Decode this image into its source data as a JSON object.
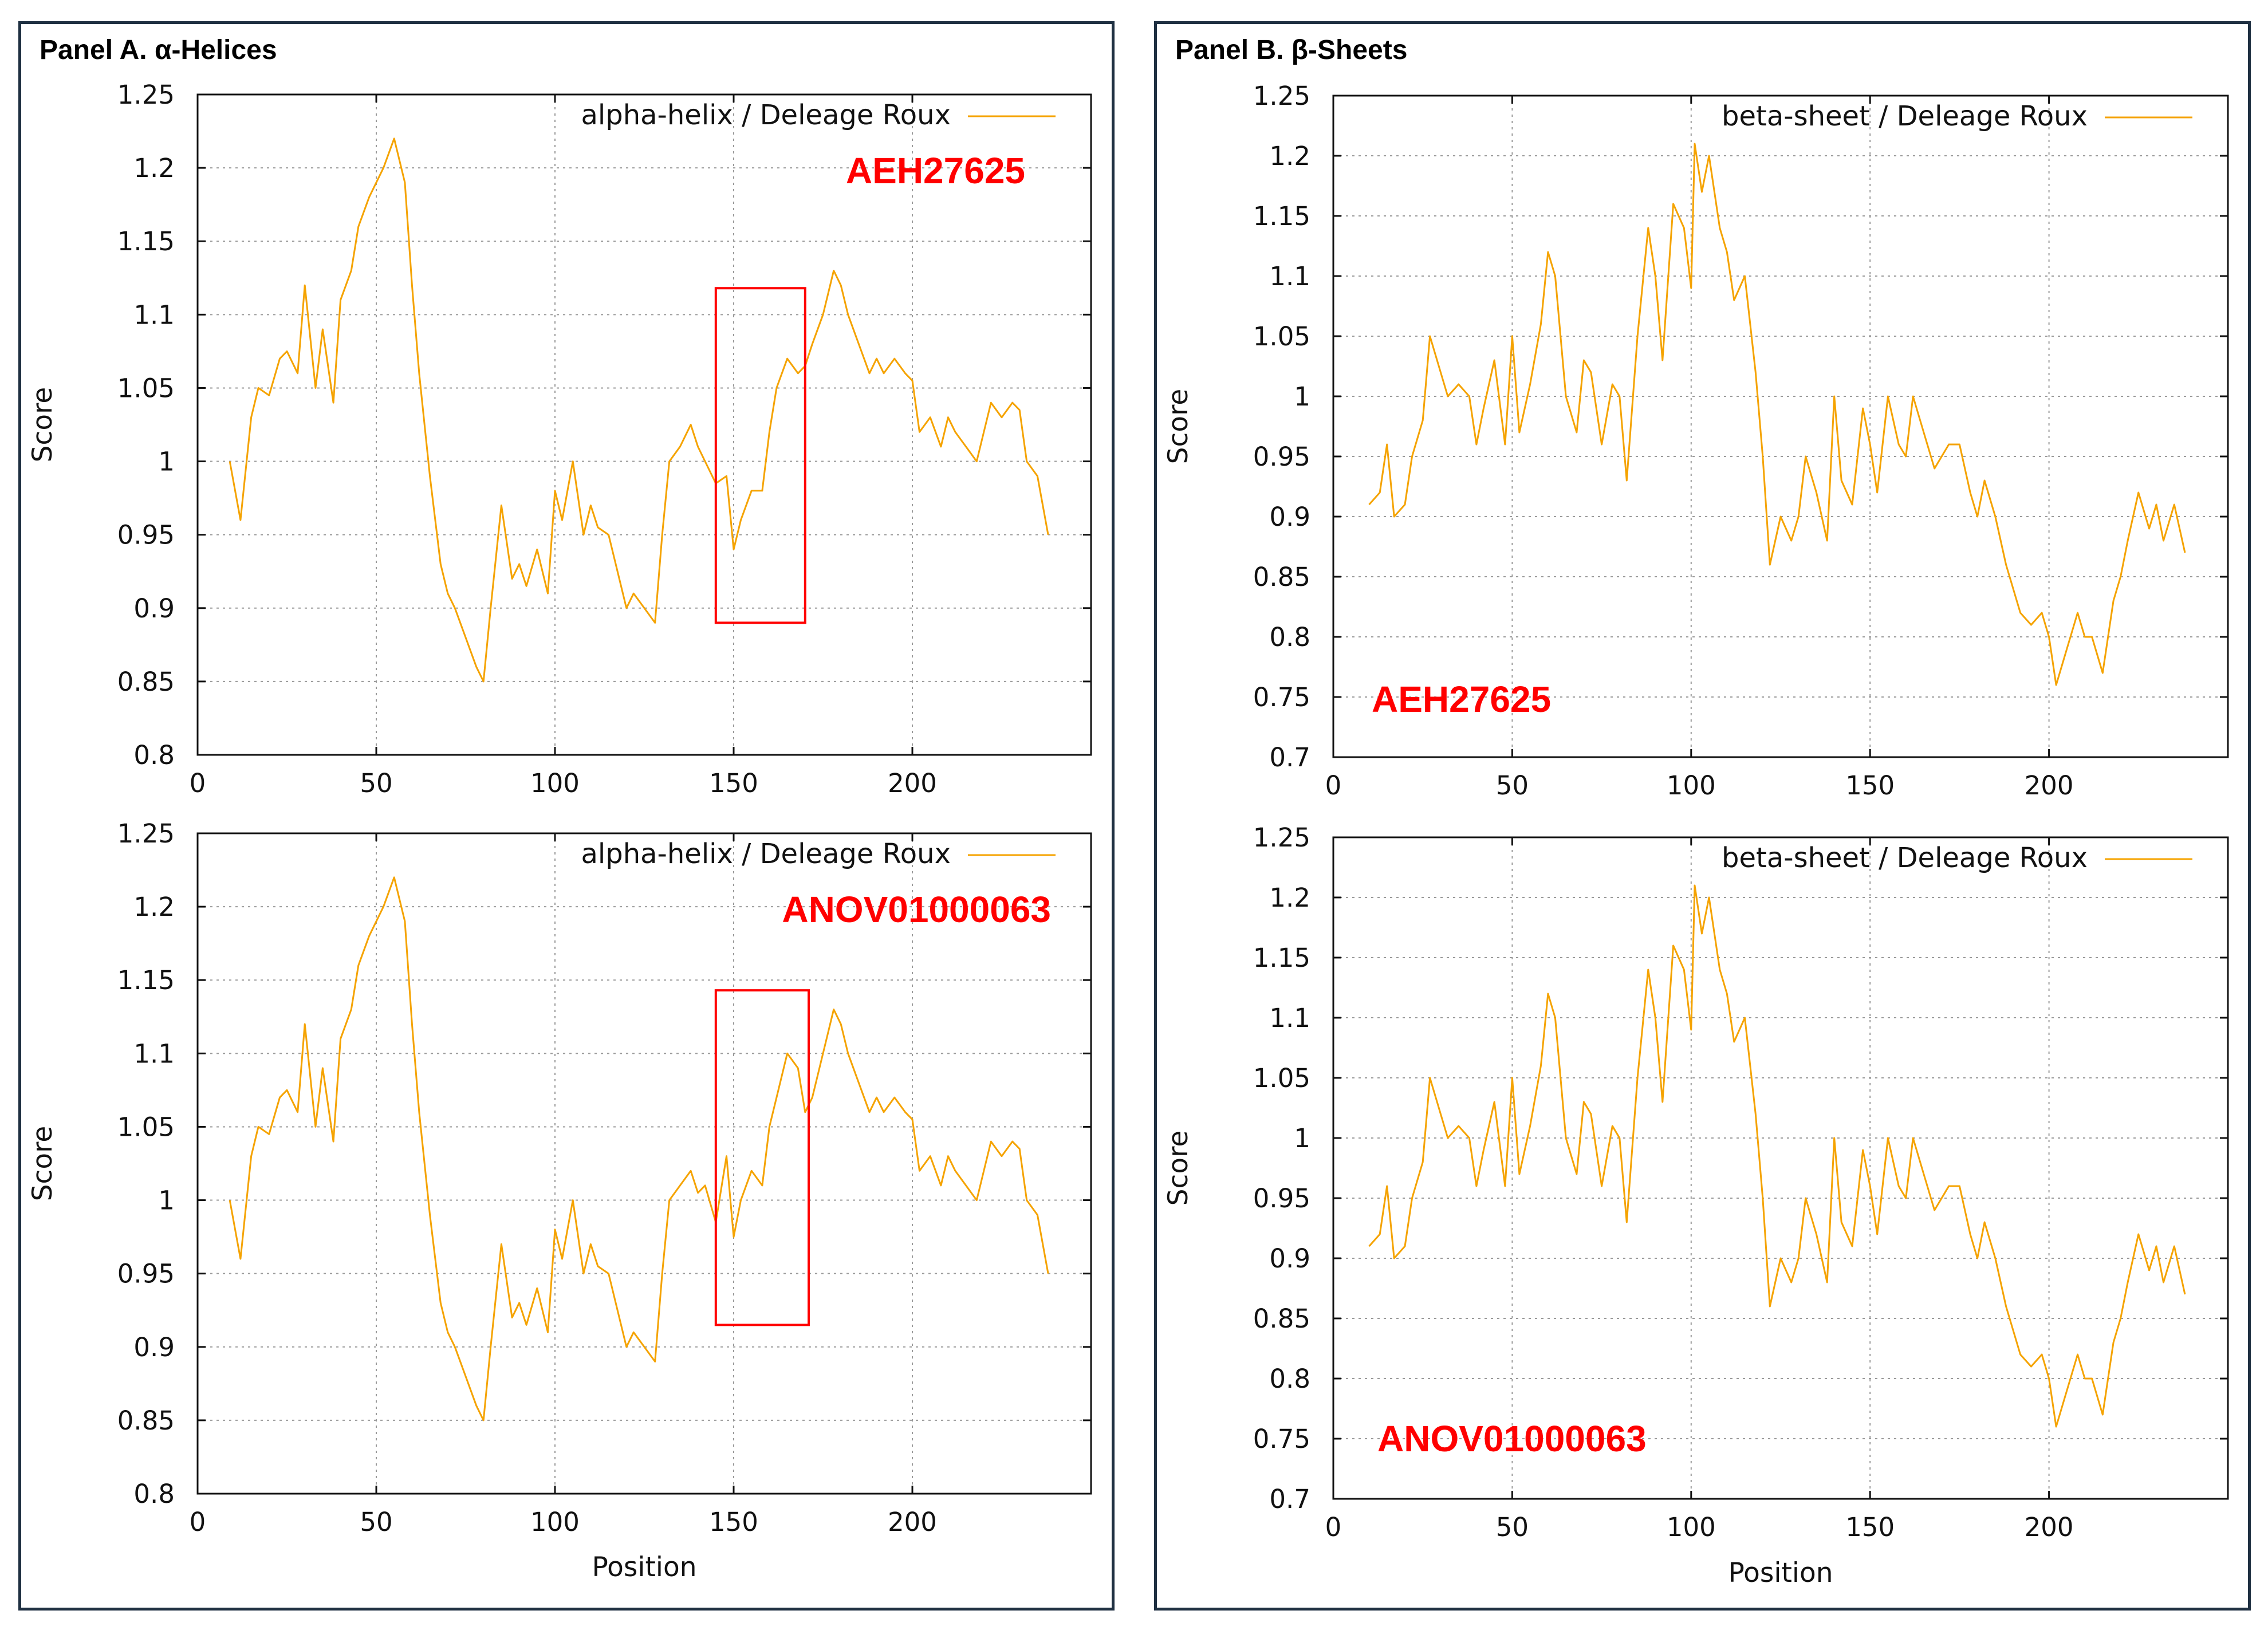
{
  "accent_color": "#ff0000",
  "line_color": "#f5a300",
  "panels": [
    {
      "title": "Panel A. α-Helices"
    },
    {
      "title": "Panel B. β-Sheets"
    }
  ],
  "chart_data": [
    {
      "type": "line",
      "panel": "A",
      "title": "",
      "xlabel": "",
      "ylabel": "Score",
      "xlim": [
        0,
        250
      ],
      "ylim": [
        0.8,
        1.25
      ],
      "xticks": [
        "0",
        "50",
        "100",
        "150",
        "200"
      ],
      "yticks": [
        "0.8",
        "0.85",
        "0.9",
        "0.95",
        "1",
        "1.05",
        "1.1",
        "1.15",
        "1.2",
        "1.25"
      ],
      "legend": "alpha-helix / Deleage  Roux",
      "legend_position": "top-right",
      "annotation": "AEH27625",
      "grid": true,
      "highlight_box": {
        "x": [
          145,
          170
        ],
        "y": [
          0.89,
          1.118
        ]
      },
      "series": [
        {
          "name": "alpha-helix / Deleage  Roux",
          "x": [
            9,
            12,
            15,
            17,
            20,
            23,
            25,
            28,
            30,
            33,
            35,
            38,
            40,
            43,
            45,
            48,
            50,
            52,
            55,
            58,
            60,
            62,
            65,
            68,
            70,
            72,
            75,
            78,
            80,
            82,
            85,
            88,
            90,
            92,
            95,
            98,
            100,
            102,
            105,
            108,
            110,
            112,
            115,
            118,
            120,
            122,
            125,
            128,
            130,
            132,
            135,
            138,
            140,
            142,
            145,
            148,
            150,
            152,
            155,
            158,
            160,
            162,
            165,
            168,
            170,
            172,
            175,
            178,
            180,
            182,
            185,
            188,
            190,
            192,
            195,
            198,
            200,
            202,
            205,
            208,
            210,
            212,
            215,
            218,
            220,
            222,
            225,
            228,
            230,
            232,
            235,
            238
          ],
          "y": [
            1.0,
            0.96,
            1.03,
            1.05,
            1.045,
            1.07,
            1.075,
            1.06,
            1.12,
            1.05,
            1.09,
            1.04,
            1.11,
            1.13,
            1.16,
            1.18,
            1.19,
            1.2,
            1.22,
            1.19,
            1.12,
            1.06,
            0.99,
            0.93,
            0.91,
            0.9,
            0.88,
            0.86,
            0.85,
            0.9,
            0.97,
            0.92,
            0.93,
            0.915,
            0.94,
            0.91,
            0.98,
            0.96,
            1.0,
            0.95,
            0.97,
            0.955,
            0.95,
            0.92,
            0.9,
            0.91,
            0.9,
            0.89,
            0.95,
            1.0,
            1.01,
            1.025,
            1.01,
            1.0,
            0.985,
            0.99,
            0.94,
            0.96,
            0.98,
            0.98,
            1.02,
            1.05,
            1.07,
            1.06,
            1.065,
            1.08,
            1.1,
            1.13,
            1.12,
            1.1,
            1.08,
            1.06,
            1.07,
            1.06,
            1.07,
            1.06,
            1.055,
            1.02,
            1.03,
            1.01,
            1.03,
            1.02,
            1.01,
            1.0,
            1.02,
            1.04,
            1.03,
            1.04,
            1.035,
            1.0,
            0.99,
            0.95
          ]
        }
      ]
    },
    {
      "type": "line",
      "panel": "A",
      "title": "",
      "xlabel": "Position",
      "ylabel": "Score",
      "xlim": [
        0,
        250
      ],
      "ylim": [
        0.8,
        1.25
      ],
      "xticks": [
        "0",
        "50",
        "100",
        "150",
        "200"
      ],
      "yticks": [
        "0.8",
        "0.85",
        "0.9",
        "0.95",
        "1",
        "1.05",
        "1.1",
        "1.15",
        "1.2",
        "1.25"
      ],
      "legend": "alpha-helix / Deleage  Roux",
      "legend_position": "top-right",
      "annotation": "ANOV01000063",
      "grid": true,
      "highlight_box": {
        "x": [
          145,
          171
        ],
        "y": [
          0.915,
          1.143
        ]
      },
      "series": [
        {
          "name": "alpha-helix / Deleage  Roux",
          "x": [
            9,
            12,
            15,
            17,
            20,
            23,
            25,
            28,
            30,
            33,
            35,
            38,
            40,
            43,
            45,
            48,
            50,
            52,
            55,
            58,
            60,
            62,
            65,
            68,
            70,
            72,
            75,
            78,
            80,
            82,
            85,
            88,
            90,
            92,
            95,
            98,
            100,
            102,
            105,
            108,
            110,
            112,
            115,
            118,
            120,
            122,
            125,
            128,
            130,
            132,
            135,
            138,
            140,
            142,
            145,
            148,
            150,
            152,
            155,
            158,
            160,
            162,
            165,
            168,
            170,
            172,
            175,
            178,
            180,
            182,
            185,
            188,
            190,
            192,
            195,
            198,
            200,
            202,
            205,
            208,
            210,
            212,
            215,
            218,
            220,
            222,
            225,
            228,
            230,
            232,
            235,
            238
          ],
          "y": [
            1.0,
            0.96,
            1.03,
            1.05,
            1.045,
            1.07,
            1.075,
            1.06,
            1.12,
            1.05,
            1.09,
            1.04,
            1.11,
            1.13,
            1.16,
            1.18,
            1.19,
            1.2,
            1.22,
            1.19,
            1.12,
            1.06,
            0.99,
            0.93,
            0.91,
            0.9,
            0.88,
            0.86,
            0.85,
            0.9,
            0.97,
            0.92,
            0.93,
            0.915,
            0.94,
            0.91,
            0.98,
            0.96,
            1.0,
            0.95,
            0.97,
            0.955,
            0.95,
            0.92,
            0.9,
            0.91,
            0.9,
            0.89,
            0.95,
            1.0,
            1.01,
            1.02,
            1.005,
            1.01,
            0.985,
            1.03,
            0.975,
            1.0,
            1.02,
            1.01,
            1.05,
            1.07,
            1.1,
            1.09,
            1.06,
            1.07,
            1.1,
            1.13,
            1.12,
            1.1,
            1.08,
            1.06,
            1.07,
            1.06,
            1.07,
            1.06,
            1.055,
            1.02,
            1.03,
            1.01,
            1.03,
            1.02,
            1.01,
            1.0,
            1.02,
            1.04,
            1.03,
            1.04,
            1.035,
            1.0,
            0.99,
            0.95
          ]
        }
      ]
    },
    {
      "type": "line",
      "panel": "B",
      "title": "",
      "xlabel": "",
      "ylabel": "Score",
      "xlim": [
        0,
        250
      ],
      "ylim": [
        0.7,
        1.25
      ],
      "xticks": [
        "0",
        "50",
        "100",
        "150",
        "200"
      ],
      "yticks": [
        "0.7",
        "0.75",
        "0.8",
        "0.85",
        "0.9",
        "0.95",
        "1",
        "1.05",
        "1.1",
        "1.15",
        "1.2",
        "1.25"
      ],
      "legend": "beta-sheet / Deleage  Roux",
      "legend_position": "top-right",
      "annotation": "AEH27625",
      "grid": true,
      "series": [
        {
          "name": "beta-sheet / Deleage  Roux",
          "x": [
            10,
            13,
            15,
            17,
            20,
            22,
            25,
            27,
            30,
            32,
            35,
            38,
            40,
            42,
            45,
            48,
            50,
            52,
            55,
            58,
            60,
            62,
            65,
            68,
            70,
            72,
            75,
            78,
            80,
            82,
            85,
            88,
            90,
            92,
            95,
            98,
            100,
            101,
            103,
            105,
            108,
            110,
            112,
            115,
            118,
            120,
            122,
            125,
            128,
            130,
            132,
            135,
            138,
            140,
            142,
            145,
            148,
            150,
            152,
            155,
            158,
            160,
            162,
            165,
            168,
            170,
            172,
            175,
            178,
            180,
            182,
            185,
            188,
            190,
            192,
            195,
            198,
            200,
            202,
            205,
            208,
            210,
            212,
            215,
            218,
            220,
            222,
            225,
            228,
            230,
            232,
            235,
            238
          ],
          "y": [
            0.91,
            0.92,
            0.96,
            0.9,
            0.91,
            0.95,
            0.98,
            1.05,
            1.02,
            1.0,
            1.01,
            1.0,
            0.96,
            0.99,
            1.03,
            0.96,
            1.05,
            0.97,
            1.01,
            1.06,
            1.12,
            1.1,
            1.0,
            0.97,
            1.03,
            1.02,
            0.96,
            1.01,
            1.0,
            0.93,
            1.05,
            1.14,
            1.1,
            1.03,
            1.16,
            1.14,
            1.09,
            1.21,
            1.17,
            1.2,
            1.14,
            1.12,
            1.08,
            1.1,
            1.02,
            0.95,
            0.86,
            0.9,
            0.88,
            0.9,
            0.95,
            0.92,
            0.88,
            1.0,
            0.93,
            0.91,
            0.99,
            0.96,
            0.92,
            1.0,
            0.96,
            0.95,
            1.0,
            0.97,
            0.94,
            0.95,
            0.96,
            0.96,
            0.92,
            0.9,
            0.93,
            0.9,
            0.86,
            0.84,
            0.82,
            0.81,
            0.82,
            0.8,
            0.76,
            0.79,
            0.82,
            0.8,
            0.8,
            0.77,
            0.83,
            0.85,
            0.88,
            0.92,
            0.89,
            0.91,
            0.88,
            0.91,
            0.87
          ]
        }
      ]
    },
    {
      "type": "line",
      "panel": "B",
      "title": "",
      "xlabel": "Position",
      "ylabel": "Score",
      "xlim": [
        0,
        250
      ],
      "ylim": [
        0.7,
        1.25
      ],
      "xticks": [
        "0",
        "50",
        "100",
        "150",
        "200"
      ],
      "yticks": [
        "0.7",
        "0.75",
        "0.8",
        "0.85",
        "0.9",
        "0.95",
        "1",
        "1.05",
        "1.1",
        "1.15",
        "1.2",
        "1.25"
      ],
      "legend": "beta-sheet / Deleage  Roux",
      "legend_position": "top-right",
      "annotation": "ANOV01000063",
      "grid": true,
      "series": [
        {
          "name": "beta-sheet / Deleage  Roux",
          "x": [
            10,
            13,
            15,
            17,
            20,
            22,
            25,
            27,
            30,
            32,
            35,
            38,
            40,
            42,
            45,
            48,
            50,
            52,
            55,
            58,
            60,
            62,
            65,
            68,
            70,
            72,
            75,
            78,
            80,
            82,
            85,
            88,
            90,
            92,
            95,
            98,
            100,
            101,
            103,
            105,
            108,
            110,
            112,
            115,
            118,
            120,
            122,
            125,
            128,
            130,
            132,
            135,
            138,
            140,
            142,
            145,
            148,
            150,
            152,
            155,
            158,
            160,
            162,
            165,
            168,
            170,
            172,
            175,
            178,
            180,
            182,
            185,
            188,
            190,
            192,
            195,
            198,
            200,
            202,
            205,
            208,
            210,
            212,
            215,
            218,
            220,
            222,
            225,
            228,
            230,
            232,
            235,
            238
          ],
          "y": [
            0.91,
            0.92,
            0.96,
            0.9,
            0.91,
            0.95,
            0.98,
            1.05,
            1.02,
            1.0,
            1.01,
            1.0,
            0.96,
            0.99,
            1.03,
            0.96,
            1.05,
            0.97,
            1.01,
            1.06,
            1.12,
            1.1,
            1.0,
            0.97,
            1.03,
            1.02,
            0.96,
            1.01,
            1.0,
            0.93,
            1.05,
            1.14,
            1.1,
            1.03,
            1.16,
            1.14,
            1.09,
            1.21,
            1.17,
            1.2,
            1.14,
            1.12,
            1.08,
            1.1,
            1.02,
            0.95,
            0.86,
            0.9,
            0.88,
            0.9,
            0.95,
            0.92,
            0.88,
            1.0,
            0.93,
            0.91,
            0.99,
            0.96,
            0.92,
            1.0,
            0.96,
            0.95,
            1.0,
            0.97,
            0.94,
            0.95,
            0.96,
            0.96,
            0.92,
            0.9,
            0.93,
            0.9,
            0.86,
            0.84,
            0.82,
            0.81,
            0.82,
            0.8,
            0.76,
            0.79,
            0.82,
            0.8,
            0.8,
            0.77,
            0.83,
            0.85,
            0.88,
            0.92,
            0.89,
            0.91,
            0.88,
            0.91,
            0.87
          ]
        }
      ]
    }
  ]
}
